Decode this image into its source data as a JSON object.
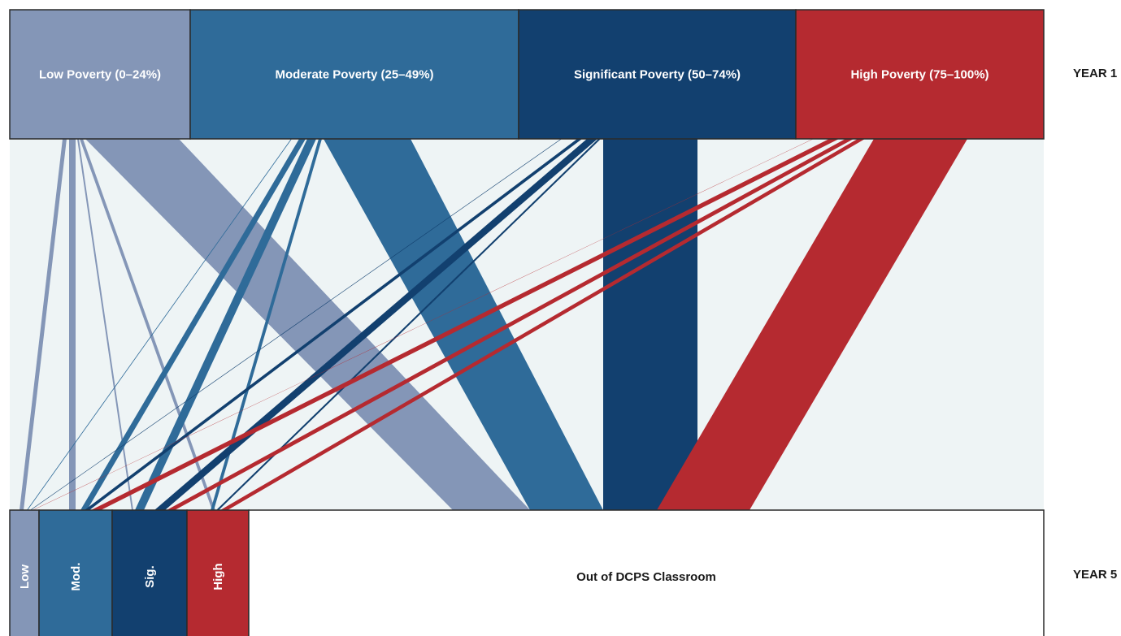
{
  "rows": {
    "top_label": "YEAR 1",
    "bottom_label": "YEAR 5"
  },
  "year1_nodes": [
    {
      "id": "low",
      "label": "Low Poverty (0–24%)",
      "color": "#8496b7"
    },
    {
      "id": "mod",
      "label": "Moderate Poverty (25–49%)",
      "color": "#2f6b99"
    },
    {
      "id": "sig",
      "label": "Significant Poverty (50–74%)",
      "color": "#12406f"
    },
    {
      "id": "high",
      "label": "High Poverty (75–100%)",
      "color": "#b52a30"
    }
  ],
  "year5_nodes": [
    {
      "id": "low",
      "label": "Low",
      "color": "#8496b7",
      "text_color": "#ffffff"
    },
    {
      "id": "mod",
      "label": "Mod.",
      "color": "#2f6b99",
      "text_color": "#ffffff"
    },
    {
      "id": "sig",
      "label": "Sig.",
      "color": "#12406f",
      "text_color": "#ffffff"
    },
    {
      "id": "high",
      "label": "High",
      "color": "#b52a30",
      "text_color": "#ffffff"
    },
    {
      "id": "out",
      "label": "Out of DCPS Classroom",
      "color": "#ffffff",
      "text_color": "#1a1a1a"
    }
  ],
  "colors": {
    "flow_background": "#eef4f5",
    "node_border": "#2a2a2a"
  }
}
